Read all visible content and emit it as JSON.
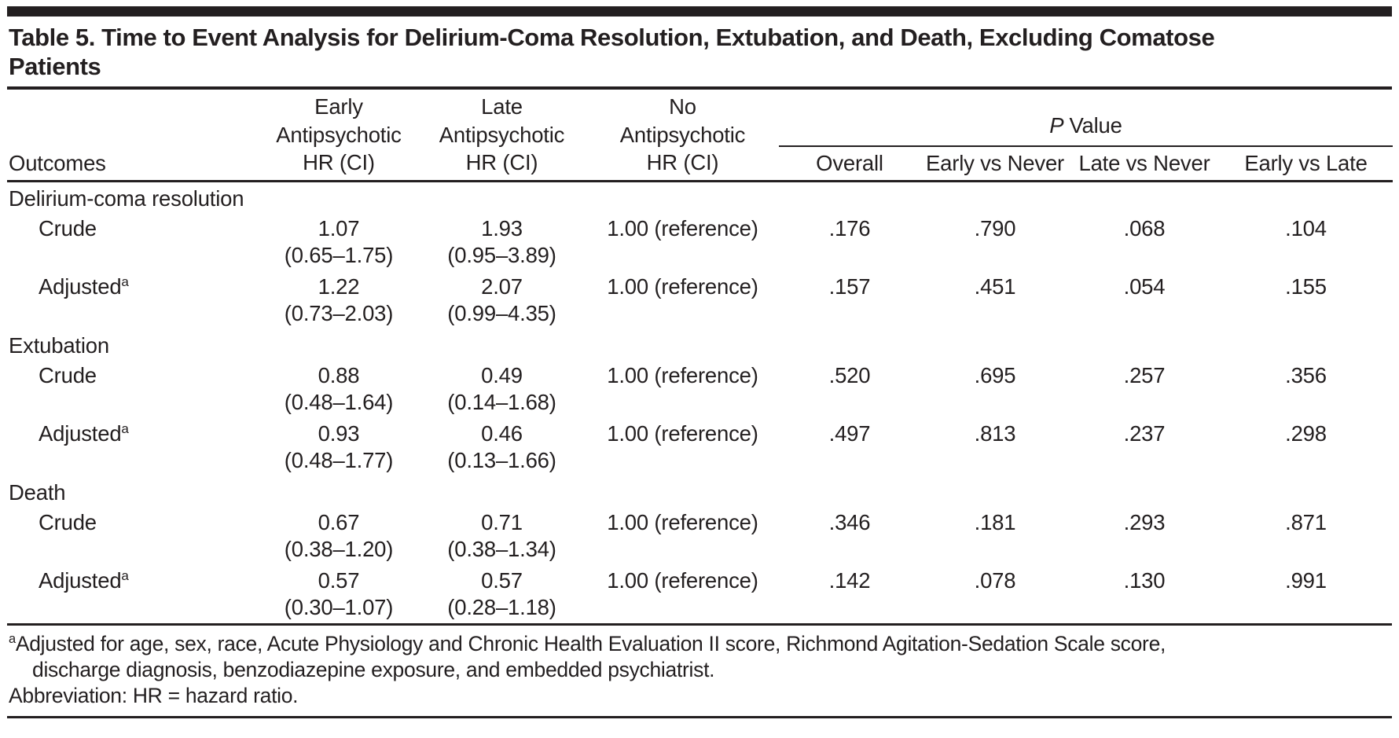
{
  "page": {
    "title_lines": [
      "Table 5. Time to Event Analysis for Delirium-Coma Resolution, Extubation, and Death, Excluding Comatose",
      "Patients"
    ]
  },
  "header": {
    "outcomes": "Outcomes",
    "col_early": [
      "Early",
      "Antipsychotic",
      "HR (CI)"
    ],
    "col_late": [
      "Late",
      "Antipsychotic",
      "HR (CI)"
    ],
    "col_none": [
      "No",
      "Antipsychotic",
      "HR (CI)"
    ],
    "p_group": {
      "italic": "P",
      "rest": "Value"
    },
    "p_cols": [
      "Overall",
      "Early vs Never",
      "Late vs Never",
      "Early vs Late"
    ]
  },
  "sections": [
    {
      "label": "Delirium-coma resolution",
      "rows": [
        {
          "label": "Crude",
          "early_hr": "1.07",
          "early_ci": "(0.65–1.75)",
          "late_hr": "1.93",
          "late_ci": "(0.95–3.89)",
          "none_hr": "1.00 (reference)",
          "p": [
            ".176",
            ".790",
            ".068",
            ".104"
          ]
        },
        {
          "label": "Adjusted",
          "sup": "a",
          "early_hr": "1.22",
          "early_ci": "(0.73–2.03)",
          "late_hr": "2.07",
          "late_ci": "(0.99–4.35)",
          "none_hr": "1.00 (reference)",
          "p": [
            ".157",
            ".451",
            ".054",
            ".155"
          ]
        }
      ]
    },
    {
      "label": "Extubation",
      "rows": [
        {
          "label": "Crude",
          "early_hr": "0.88",
          "early_ci": "(0.48–1.64)",
          "late_hr": "0.49",
          "late_ci": "(0.14–1.68)",
          "none_hr": "1.00 (reference)",
          "p": [
            ".520",
            ".695",
            ".257",
            ".356"
          ]
        },
        {
          "label": "Adjusted",
          "sup": "a",
          "early_hr": "0.93",
          "early_ci": "(0.48–1.77)",
          "late_hr": "0.46",
          "late_ci": "(0.13–1.66)",
          "none_hr": "1.00 (reference)",
          "p": [
            ".497",
            ".813",
            ".237",
            ".298"
          ]
        }
      ]
    },
    {
      "label": "Death",
      "rows": [
        {
          "label": "Crude",
          "early_hr": "0.67",
          "early_ci": "(0.38–1.20)",
          "late_hr": "0.71",
          "late_ci": "(0.38–1.34)",
          "none_hr": "1.00 (reference)",
          "p": [
            ".346",
            ".181",
            ".293",
            ".871"
          ]
        },
        {
          "label": "Adjusted",
          "sup": "a",
          "early_hr": "0.57",
          "early_ci": "(0.30–1.07)",
          "late_hr": "0.57",
          "late_ci": "(0.28–1.18)",
          "none_hr": "1.00 (reference)",
          "p": [
            ".142",
            ".078",
            ".130",
            ".991"
          ]
        }
      ]
    }
  ],
  "footnotes": {
    "sup": "a",
    "adjusted_note_lines": [
      "Adjusted for age, sex, race, Acute Physiology and Chronic Health Evaluation II score, Richmond Agitation-Sedation Scale score,",
      "discharge diagnosis, benzodiazepine exposure, and embedded psychiatrist."
    ],
    "abbreviation": "Abbreviation: HR = hazard ratio."
  }
}
